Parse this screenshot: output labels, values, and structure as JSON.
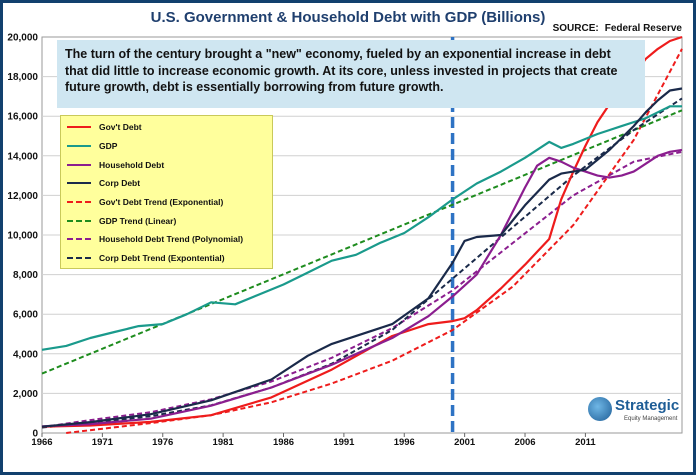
{
  "chart_data": {
    "type": "line",
    "title": "U.S. Government & Household Debt with GDP (Billions)",
    "source_label": "SOURCE:",
    "source_value": "Federal Reserve",
    "annotation": "The turn of the century brought a \"new\" economy, fueled by an exponential increase in debt that did little to increase economic growth.  At its core,  unless invested in projects that create future growth, debt is essentially borrowing from future growth.",
    "xlim": [
      1966,
      2019
    ],
    "ylim": [
      0,
      20000
    ],
    "x_ticks": [
      1966,
      1971,
      1976,
      1981,
      1986,
      1991,
      1996,
      2001,
      2006,
      2011
    ],
    "y_ticks": [
      0,
      2000,
      4000,
      6000,
      8000,
      10000,
      12000,
      14000,
      16000,
      18000,
      20000
    ],
    "y_tick_labels": [
      "0",
      "2,000",
      "4,000",
      "6,000",
      "8,000",
      "10,000",
      "12,000",
      "14,000",
      "16,000",
      "18,000",
      "20,000"
    ],
    "vline_x": 2000,
    "series": [
      {
        "name": "Gov't Debt",
        "color": "#ee1c1c",
        "style": "solid",
        "x": [
          1966,
          1970,
          1975,
          1980,
          1985,
          1990,
          1995,
          1998,
          2000,
          2001,
          2002,
          2004,
          2006,
          2008,
          2009,
          2010,
          2011,
          2012,
          2013,
          2014,
          2015,
          2016,
          2017,
          2018,
          2019
        ],
        "y": [
          320,
          380,
          560,
          900,
          1800,
          3200,
          4900,
          5500,
          5650,
          5800,
          6200,
          7300,
          8500,
          9800,
          11800,
          13200,
          14500,
          15700,
          16600,
          17600,
          18100,
          18900,
          19400,
          19800,
          20000
        ]
      },
      {
        "name": "GDP",
        "color": "#1a9a8c",
        "style": "solid",
        "x": [
          1966,
          1968,
          1970,
          1972,
          1974,
          1976,
          1978,
          1980,
          1982,
          1984,
          1986,
          1988,
          1990,
          1992,
          1994,
          1996,
          1998,
          2000,
          2002,
          2004,
          2006,
          2008,
          2009,
          2010,
          2012,
          2014,
          2016,
          2018,
          2019
        ],
        "y": [
          4200,
          4400,
          4800,
          5100,
          5400,
          5500,
          6000,
          6600,
          6500,
          7000,
          7500,
          8100,
          8700,
          9000,
          9600,
          10100,
          10900,
          11800,
          12600,
          13200,
          13900,
          14700,
          14400,
          14600,
          15100,
          15500,
          15900,
          16500,
          16500
        ]
      },
      {
        "name": "Household Debt",
        "color": "#8b1e8f",
        "style": "solid",
        "x": [
          1966,
          1970,
          1975,
          1980,
          1985,
          1990,
          1995,
          1998,
          2000,
          2002,
          2004,
          2006,
          2007,
          2008,
          2009,
          2010,
          2011,
          2012,
          2013,
          2014,
          2015,
          2016,
          2017,
          2018,
          2019
        ],
        "y": [
          340,
          450,
          720,
          1380,
          2300,
          3450,
          4800,
          5900,
          6900,
          8000,
          10000,
          12400,
          13500,
          13900,
          13700,
          13400,
          13200,
          13000,
          12900,
          13000,
          13200,
          13600,
          14000,
          14200,
          14300
        ]
      },
      {
        "name": "Corp Debt",
        "color": "#1a2a4a",
        "style": "solid",
        "x": [
          1966,
          1970,
          1975,
          1980,
          1985,
          1988,
          1990,
          1995,
          1998,
          2000,
          2001,
          2002,
          2004,
          2006,
          2008,
          2009,
          2010,
          2011,
          2012,
          2013,
          2014,
          2015,
          2016,
          2017,
          2018,
          2019
        ],
        "y": [
          320,
          550,
          950,
          1650,
          2700,
          3900,
          4500,
          5500,
          6800,
          8600,
          9700,
          9900,
          10000,
          11500,
          12800,
          13100,
          13200,
          13300,
          13800,
          14300,
          14900,
          15500,
          16200,
          16800,
          17300,
          17400
        ]
      },
      {
        "name": "Gov't Debt Trend (Exponential)",
        "color": "#ee1c1c",
        "style": "dashed",
        "x": [
          1968,
          1975,
          1980,
          1985,
          1990,
          1995,
          2000,
          2005,
          2010,
          2015,
          2019
        ],
        "y": [
          0,
          500,
          900,
          1550,
          2500,
          3650,
          5200,
          7400,
          10500,
          14800,
          19400
        ]
      },
      {
        "name": "GDP Trend (Linear)",
        "color": "#1e8c1e",
        "style": "dashed",
        "x": [
          1966,
          2019
        ],
        "y": [
          3000,
          16300
        ]
      },
      {
        "name": "Household Debt Trend (Polynomial)",
        "color": "#8b1e8f",
        "style": "dashed",
        "x": [
          1966,
          1970,
          1975,
          1980,
          1985,
          1990,
          1995,
          2000,
          2005,
          2010,
          2015,
          2019
        ],
        "y": [
          300,
          650,
          1050,
          1700,
          2600,
          3800,
          5300,
          7200,
          9600,
          12000,
          13700,
          14200
        ]
      },
      {
        "name": "Corp Debt Trend (Expontential)",
        "color": "#1a2a4a",
        "style": "dashed",
        "x": [
          1966,
          1970,
          1975,
          1980,
          1985,
          1990,
          1995,
          2000,
          2005,
          2010,
          2015,
          2019
        ],
        "y": [
          280,
          500,
          850,
          1400,
          2300,
          3500,
          5200,
          7800,
          10400,
          13000,
          15300,
          16900
        ]
      }
    ]
  },
  "logo": {
    "name": "Strategic",
    "sub": "Equity Management"
  }
}
